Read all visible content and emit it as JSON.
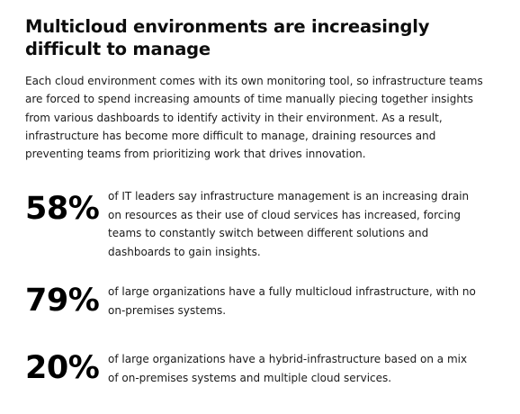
{
  "document": {
    "title": "Multicloud environments are increasingly difficult to manage",
    "intro": "Each cloud environment comes with its own monitoring tool, so infrastructure teams are forced to spend increasing amounts of time manually piecing together insights from various dashboards to identify activity in their environment. As a result, infrastructure has become more difficult to manage, draining resources and preventing teams from prioritizing work that drives innovation."
  },
  "stats": [
    {
      "value": "58%",
      "text": "of IT leaders say infrastructure management is an increasing drain on resources as their use of cloud services has increased, forcing teams to constantly switch between different solutions and dashboards to gain insights."
    },
    {
      "value": "79%",
      "text": "of large organizations have a fully multicloud infrastructure, with no on-premises systems."
    },
    {
      "value": "20%",
      "text": "of large organizations have a hybrid-infrastructure based on a mix of on-premises systems and multiple cloud services."
    }
  ]
}
